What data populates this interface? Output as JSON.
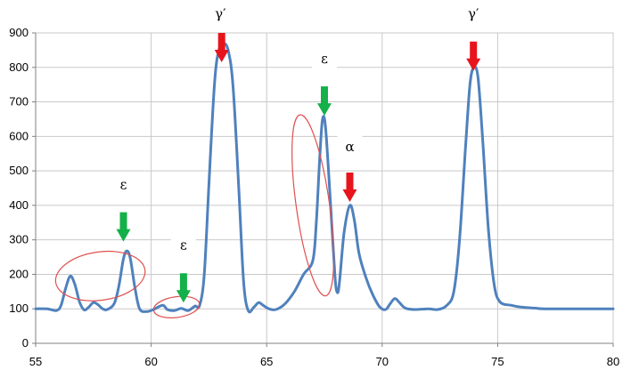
{
  "chart_data": {
    "type": "line",
    "title": "",
    "xlabel": "",
    "ylabel": "",
    "xlim": [
      55,
      80
    ],
    "ylim": [
      0,
      900
    ],
    "x_ticks": [
      55,
      60,
      65,
      70,
      75,
      80
    ],
    "y_ticks": [
      0,
      100,
      200,
      300,
      400,
      500,
      600,
      700,
      800,
      900
    ],
    "grid": true,
    "legend": "none",
    "colors": {
      "line": "#4f81bd",
      "arrow_red": "#e8141c",
      "arrow_green": "#14b04a",
      "ellipse": "#e05050",
      "grid": "#c9c9c9"
    },
    "series": [
      {
        "values": [
          [
            55.0,
            100
          ],
          [
            55.5,
            100
          ],
          [
            55.9,
            95
          ],
          [
            56.1,
            110
          ],
          [
            56.3,
            160
          ],
          [
            56.5,
            195
          ],
          [
            56.7,
            170
          ],
          [
            56.9,
            120
          ],
          [
            57.1,
            97
          ],
          [
            57.3,
            105
          ],
          [
            57.5,
            118
          ],
          [
            57.7,
            112
          ],
          [
            57.9,
            100
          ],
          [
            58.1,
            98
          ],
          [
            58.4,
            115
          ],
          [
            58.6,
            165
          ],
          [
            58.8,
            245
          ],
          [
            58.95,
            268
          ],
          [
            59.1,
            245
          ],
          [
            59.3,
            160
          ],
          [
            59.5,
            100
          ],
          [
            59.8,
            92
          ],
          [
            60.1,
            98
          ],
          [
            60.5,
            110
          ],
          [
            60.7,
            98
          ],
          [
            61.0,
            95
          ],
          [
            61.3,
            101
          ],
          [
            61.6,
            95
          ],
          [
            61.9,
            108
          ],
          [
            62.1,
            110
          ],
          [
            62.3,
            200
          ],
          [
            62.5,
            460
          ],
          [
            62.75,
            760
          ],
          [
            62.95,
            855
          ],
          [
            63.15,
            870
          ],
          [
            63.35,
            845
          ],
          [
            63.55,
            740
          ],
          [
            63.8,
            440
          ],
          [
            64.0,
            180
          ],
          [
            64.2,
            95
          ],
          [
            64.45,
            105
          ],
          [
            64.65,
            118
          ],
          [
            64.85,
            110
          ],
          [
            65.1,
            100
          ],
          [
            65.4,
            98
          ],
          [
            65.8,
            115
          ],
          [
            66.2,
            150
          ],
          [
            66.6,
            200
          ],
          [
            67.0,
            240
          ],
          [
            67.15,
            350
          ],
          [
            67.3,
            540
          ],
          [
            67.42,
            650
          ],
          [
            67.55,
            625
          ],
          [
            67.75,
            420
          ],
          [
            67.95,
            200
          ],
          [
            68.05,
            148
          ],
          [
            68.15,
            175
          ],
          [
            68.35,
            320
          ],
          [
            68.6,
            400
          ],
          [
            68.8,
            355
          ],
          [
            69.0,
            260
          ],
          [
            69.3,
            190
          ],
          [
            69.6,
            140
          ],
          [
            69.9,
            105
          ],
          [
            70.15,
            98
          ],
          [
            70.35,
            115
          ],
          [
            70.55,
            130
          ],
          [
            70.75,
            118
          ],
          [
            71.0,
            102
          ],
          [
            71.4,
            98
          ],
          [
            72.0,
            100
          ],
          [
            72.4,
            98
          ],
          [
            72.8,
            110
          ],
          [
            73.1,
            150
          ],
          [
            73.35,
            300
          ],
          [
            73.6,
            560
          ],
          [
            73.8,
            750
          ],
          [
            73.97,
            800
          ],
          [
            74.15,
            770
          ],
          [
            74.35,
            590
          ],
          [
            74.6,
            330
          ],
          [
            74.85,
            170
          ],
          [
            75.1,
            120
          ],
          [
            75.6,
            110
          ],
          [
            76.0,
            105
          ],
          [
            76.6,
            102
          ],
          [
            77.0,
            100
          ],
          [
            78.0,
            100
          ],
          [
            79.0,
            100
          ],
          [
            80.0,
            100
          ]
        ]
      }
    ],
    "annotations": [
      {
        "text": "γ′",
        "x": 63.0,
        "y": 950,
        "arrow": "red",
        "arrow_tip": [
          63.05,
          815
        ]
      },
      {
        "text": "γ′",
        "x": 73.95,
        "y": 950,
        "arrow": "red",
        "arrow_tip": [
          73.95,
          790
        ]
      },
      {
        "text": "ε",
        "x": 67.5,
        "y": 820,
        "arrow": "green",
        "arrow_tip": [
          67.5,
          660
        ]
      },
      {
        "text": "α",
        "x": 68.6,
        "y": 565,
        "arrow": "red",
        "arrow_tip": [
          68.6,
          410
        ]
      },
      {
        "text": "ε",
        "x": 58.8,
        "y": 455,
        "arrow": "green",
        "arrow_tip": [
          58.8,
          295
        ]
      },
      {
        "text": "ε",
        "x": 61.4,
        "y": 280,
        "arrow": "green",
        "arrow_tip": [
          61.4,
          118
        ]
      }
    ],
    "ellipses": [
      {
        "cx": 57.8,
        "cy": 195,
        "rx": 1.95,
        "ry": 70
      },
      {
        "cx": 61.1,
        "cy": 105,
        "rx": 1.0,
        "ry": 30
      },
      {
        "cx": 67.0,
        "cy": 400,
        "rx": 0.72,
        "ry": 265
      }
    ]
  }
}
